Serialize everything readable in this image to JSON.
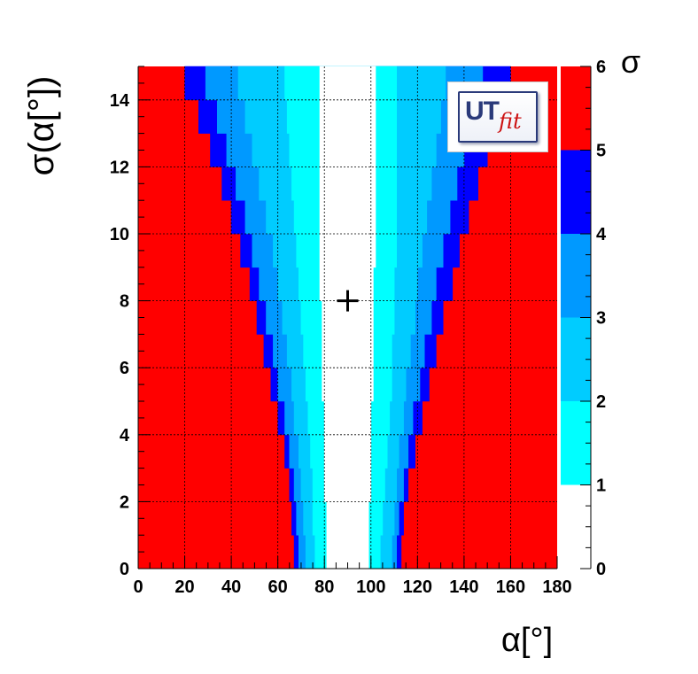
{
  "chart_data": {
    "type": "heatmap",
    "title": "",
    "xlabel": "α[°]",
    "ylabel": "σ(α[°])",
    "xlim": [
      0,
      180
    ],
    "ylim": [
      0,
      15
    ],
    "x_ticks": [
      "0",
      "20",
      "40",
      "60",
      "80",
      "100",
      "120",
      "140",
      "160",
      "180"
    ],
    "y_ticks": [
      "0",
      "2",
      "4",
      "6",
      "8",
      "10",
      "12",
      "14"
    ],
    "grid": true,
    "marker": {
      "x": 90,
      "y": 8,
      "symbol": "+"
    },
    "colorbar": {
      "label": "σ",
      "ticks": [
        "0",
        "1",
        "2",
        "3",
        "4",
        "5",
        "6"
      ],
      "levels": [
        {
          "range": [
            0,
            1
          ],
          "color": "#ffffff"
        },
        {
          "range": [
            1,
            2
          ],
          "color": "#00ffff"
        },
        {
          "range": [
            2,
            3
          ],
          "color": "#00ccff"
        },
        {
          "range": [
            3,
            4
          ],
          "color": "#0099ff"
        },
        {
          "range": [
            4,
            5
          ],
          "color": "#0000ff"
        },
        {
          "range": [
            5,
            6
          ],
          "color": "#ff0000"
        }
      ]
    },
    "contour_boundaries": {
      "description_of_values": "alpha positions (degrees) where the significance level changes, as a function of sigma(alpha)",
      "sigma_alpha": [
        0,
        1,
        2,
        3,
        4,
        5,
        6,
        7,
        8,
        9,
        10,
        11,
        12,
        13,
        14,
        15
      ],
      "left": {
        "5": [
          67,
          66,
          65,
          63,
          60,
          57,
          54,
          51,
          48,
          44,
          40,
          36,
          31,
          26,
          20,
          14
        ],
        "4": [
          69,
          68,
          67,
          65,
          63,
          60,
          58,
          55,
          52,
          49,
          46,
          42,
          38,
          34,
          29,
          24
        ],
        "3": [
          72,
          71,
          70,
          69,
          67,
          66,
          64,
          62,
          60,
          58,
          55,
          52,
          49,
          46,
          43,
          40
        ],
        "2": [
          76,
          75,
          75,
          74,
          73,
          72,
          71,
          70,
          69,
          68,
          67,
          66,
          65,
          64,
          63,
          62
        ],
        "1": [
          81,
          81,
          80,
          80,
          80,
          79,
          79,
          79,
          78,
          78,
          78,
          78,
          78,
          78,
          78,
          78
        ]
      },
      "right": {
        "1": [
          99,
          99,
          100,
          100,
          100,
          101,
          101,
          101,
          101,
          102,
          102,
          102,
          102,
          102,
          102,
          102
        ],
        "2": [
          104,
          105,
          106,
          107,
          108,
          109,
          109,
          110,
          110,
          111,
          111,
          111,
          111,
          111,
          111,
          111
        ],
        "3": [
          109,
          110,
          111,
          112,
          114,
          115,
          117,
          119,
          120,
          122,
          124,
          126,
          128,
          130,
          132,
          134
        ],
        "4": [
          111,
          112,
          114,
          116,
          118,
          121,
          123,
          126,
          128,
          131,
          134,
          137,
          140,
          144,
          148,
          152
        ],
        "5": [
          113,
          114,
          116,
          119,
          122,
          125,
          128,
          131,
          135,
          138,
          142,
          146,
          150,
          155,
          160,
          166
        ]
      }
    }
  },
  "logo": {
    "main": "UT",
    "sub": "fit"
  }
}
